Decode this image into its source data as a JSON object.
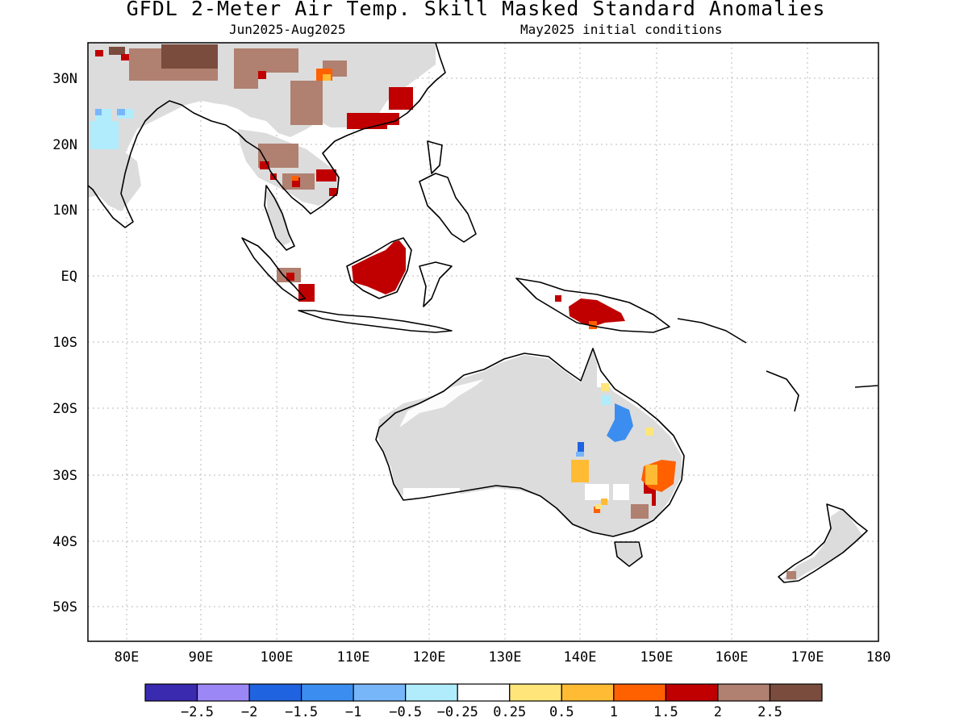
{
  "title": "GFDL 2-Meter Air Temp. Skill Masked Standard Anomalies",
  "period": "Jun2025-Aug2025",
  "init": "May2025 initial conditions",
  "lat_labels": [
    "30N",
    "20N",
    "10N",
    "EQ",
    "10S",
    "20S",
    "30S",
    "40S",
    "50S"
  ],
  "lon_labels": [
    "80E",
    "90E",
    "100E",
    "110E",
    "120E",
    "130E",
    "140E",
    "150E",
    "160E",
    "170E",
    "180"
  ],
  "colorbar": {
    "colors": [
      "#3a2ab0",
      "#9b87f5",
      "#1f63e0",
      "#3b8ef0",
      "#78b6fa",
      "#b0ecfb",
      "#ffffff",
      "#ffe57a",
      "#ffbb33",
      "#ff6000",
      "#c00000",
      "#b08070",
      "#7a4c3e"
    ],
    "labels": [
      "-2.5",
      "-2",
      "-1.5",
      "-1",
      "-0.5",
      "-0.25",
      "0.25",
      "0.5",
      "1",
      "1.5",
      "2",
      "2.5"
    ]
  }
}
